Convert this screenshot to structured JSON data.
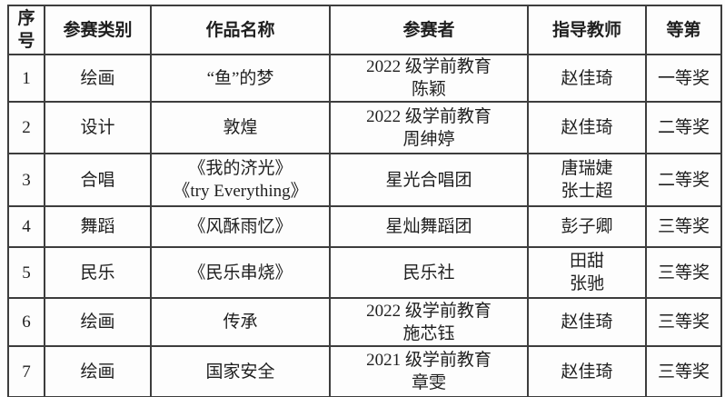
{
  "table": {
    "headers": [
      "序\n号",
      "参赛类别",
      "作品名称",
      "参赛者",
      "指导教师",
      "等第"
    ],
    "rows": [
      {
        "no": "1",
        "category": "绘画",
        "work": "“鱼”的梦",
        "participant": "2022 级学前教育\n陈颖",
        "teacher": "赵佳琦",
        "award": "一等奖"
      },
      {
        "no": "2",
        "category": "设计",
        "work": "敦煌",
        "participant": "2022 级学前教育\n周绅婷",
        "teacher": "赵佳琦",
        "award": "二等奖"
      },
      {
        "no": "3",
        "category": "合唱",
        "work": "《我的济光》\n《try Everything》",
        "participant": "星光合唱团",
        "teacher": "唐瑞婕\n张士超",
        "award": "二等奖"
      },
      {
        "no": "4",
        "category": "舞蹈",
        "work": "《风酥雨忆》",
        "participant": "星灿舞蹈团",
        "teacher": "彭子卿",
        "award": "三等奖"
      },
      {
        "no": "5",
        "category": "民乐",
        "work": "《民乐串烧》",
        "participant": "民乐社",
        "teacher": "田甜\n张驰",
        "award": "三等奖"
      },
      {
        "no": "6",
        "category": "绘画",
        "work": "传承",
        "participant": "2022 级学前教育\n施芯钰",
        "teacher": "赵佳琦",
        "award": "三等奖"
      },
      {
        "no": "7",
        "category": "绘画",
        "work": "国家安全",
        "participant": "2021 级学前教育\n章雯",
        "teacher": "赵佳琦",
        "award": "三等奖"
      }
    ]
  },
  "colors": {
    "border": "#3d3d3d",
    "text": "#1f1f1f",
    "background": "#fdfdfd"
  }
}
